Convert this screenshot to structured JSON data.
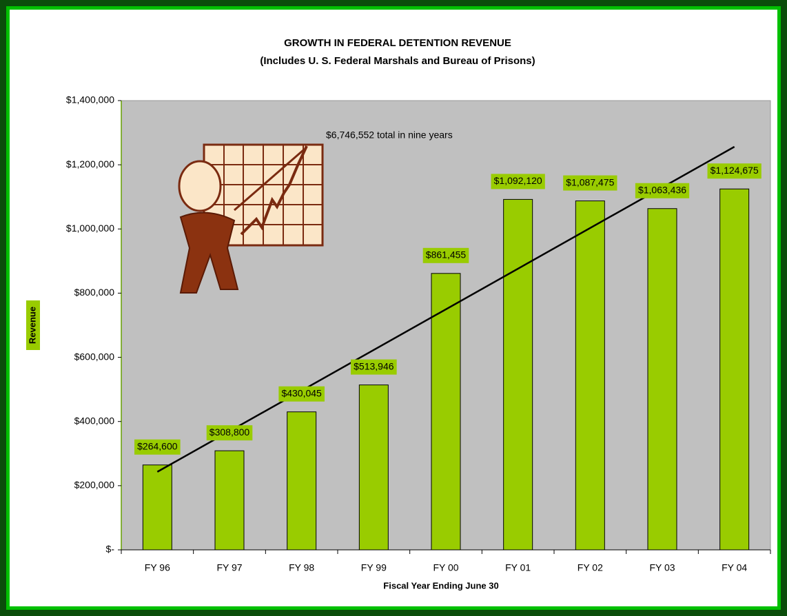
{
  "chart_data": {
    "type": "bar",
    "title": "GROWTH IN FEDERAL DETENTION REVENUE",
    "subtitle": "(Includes U. S. Federal Marshals and Bureau of Prisons)",
    "x_label": "Fiscal Year Ending June 30",
    "y_label": "Revenue",
    "annotation": "$6,746,552 total in nine years",
    "categories": [
      "FY 96",
      "FY 97",
      "FY 98",
      "FY 99",
      "FY 00",
      "FY 01",
      "FY 02",
      "FY 03",
      "FY 04"
    ],
    "values": [
      264600,
      308800,
      430045,
      513946,
      861455,
      1092120,
      1087475,
      1063436,
      1124675
    ],
    "value_labels": [
      "$264,600",
      "$308,800",
      "$430,045",
      "$513,946",
      "$861,455",
      "$1,092,120",
      "$1,087,475",
      "$1,063,436",
      "$1,124,675"
    ],
    "color": "#99cc00",
    "trendline": true,
    "ylim": [
      0,
      1400000
    ],
    "yticks": [
      {
        "value": 0,
        "label": "$-"
      },
      {
        "value": 200000,
        "label": "$200,000"
      },
      {
        "value": 400000,
        "label": "$400,000"
      },
      {
        "value": 600000,
        "label": "$600,000"
      },
      {
        "value": 800000,
        "label": "$800,000"
      },
      {
        "value": 1000000,
        "label": "$1,000,000"
      },
      {
        "value": 1200000,
        "label": "$1,200,000"
      },
      {
        "value": 1400000,
        "label": "$1,400,000"
      }
    ]
  }
}
